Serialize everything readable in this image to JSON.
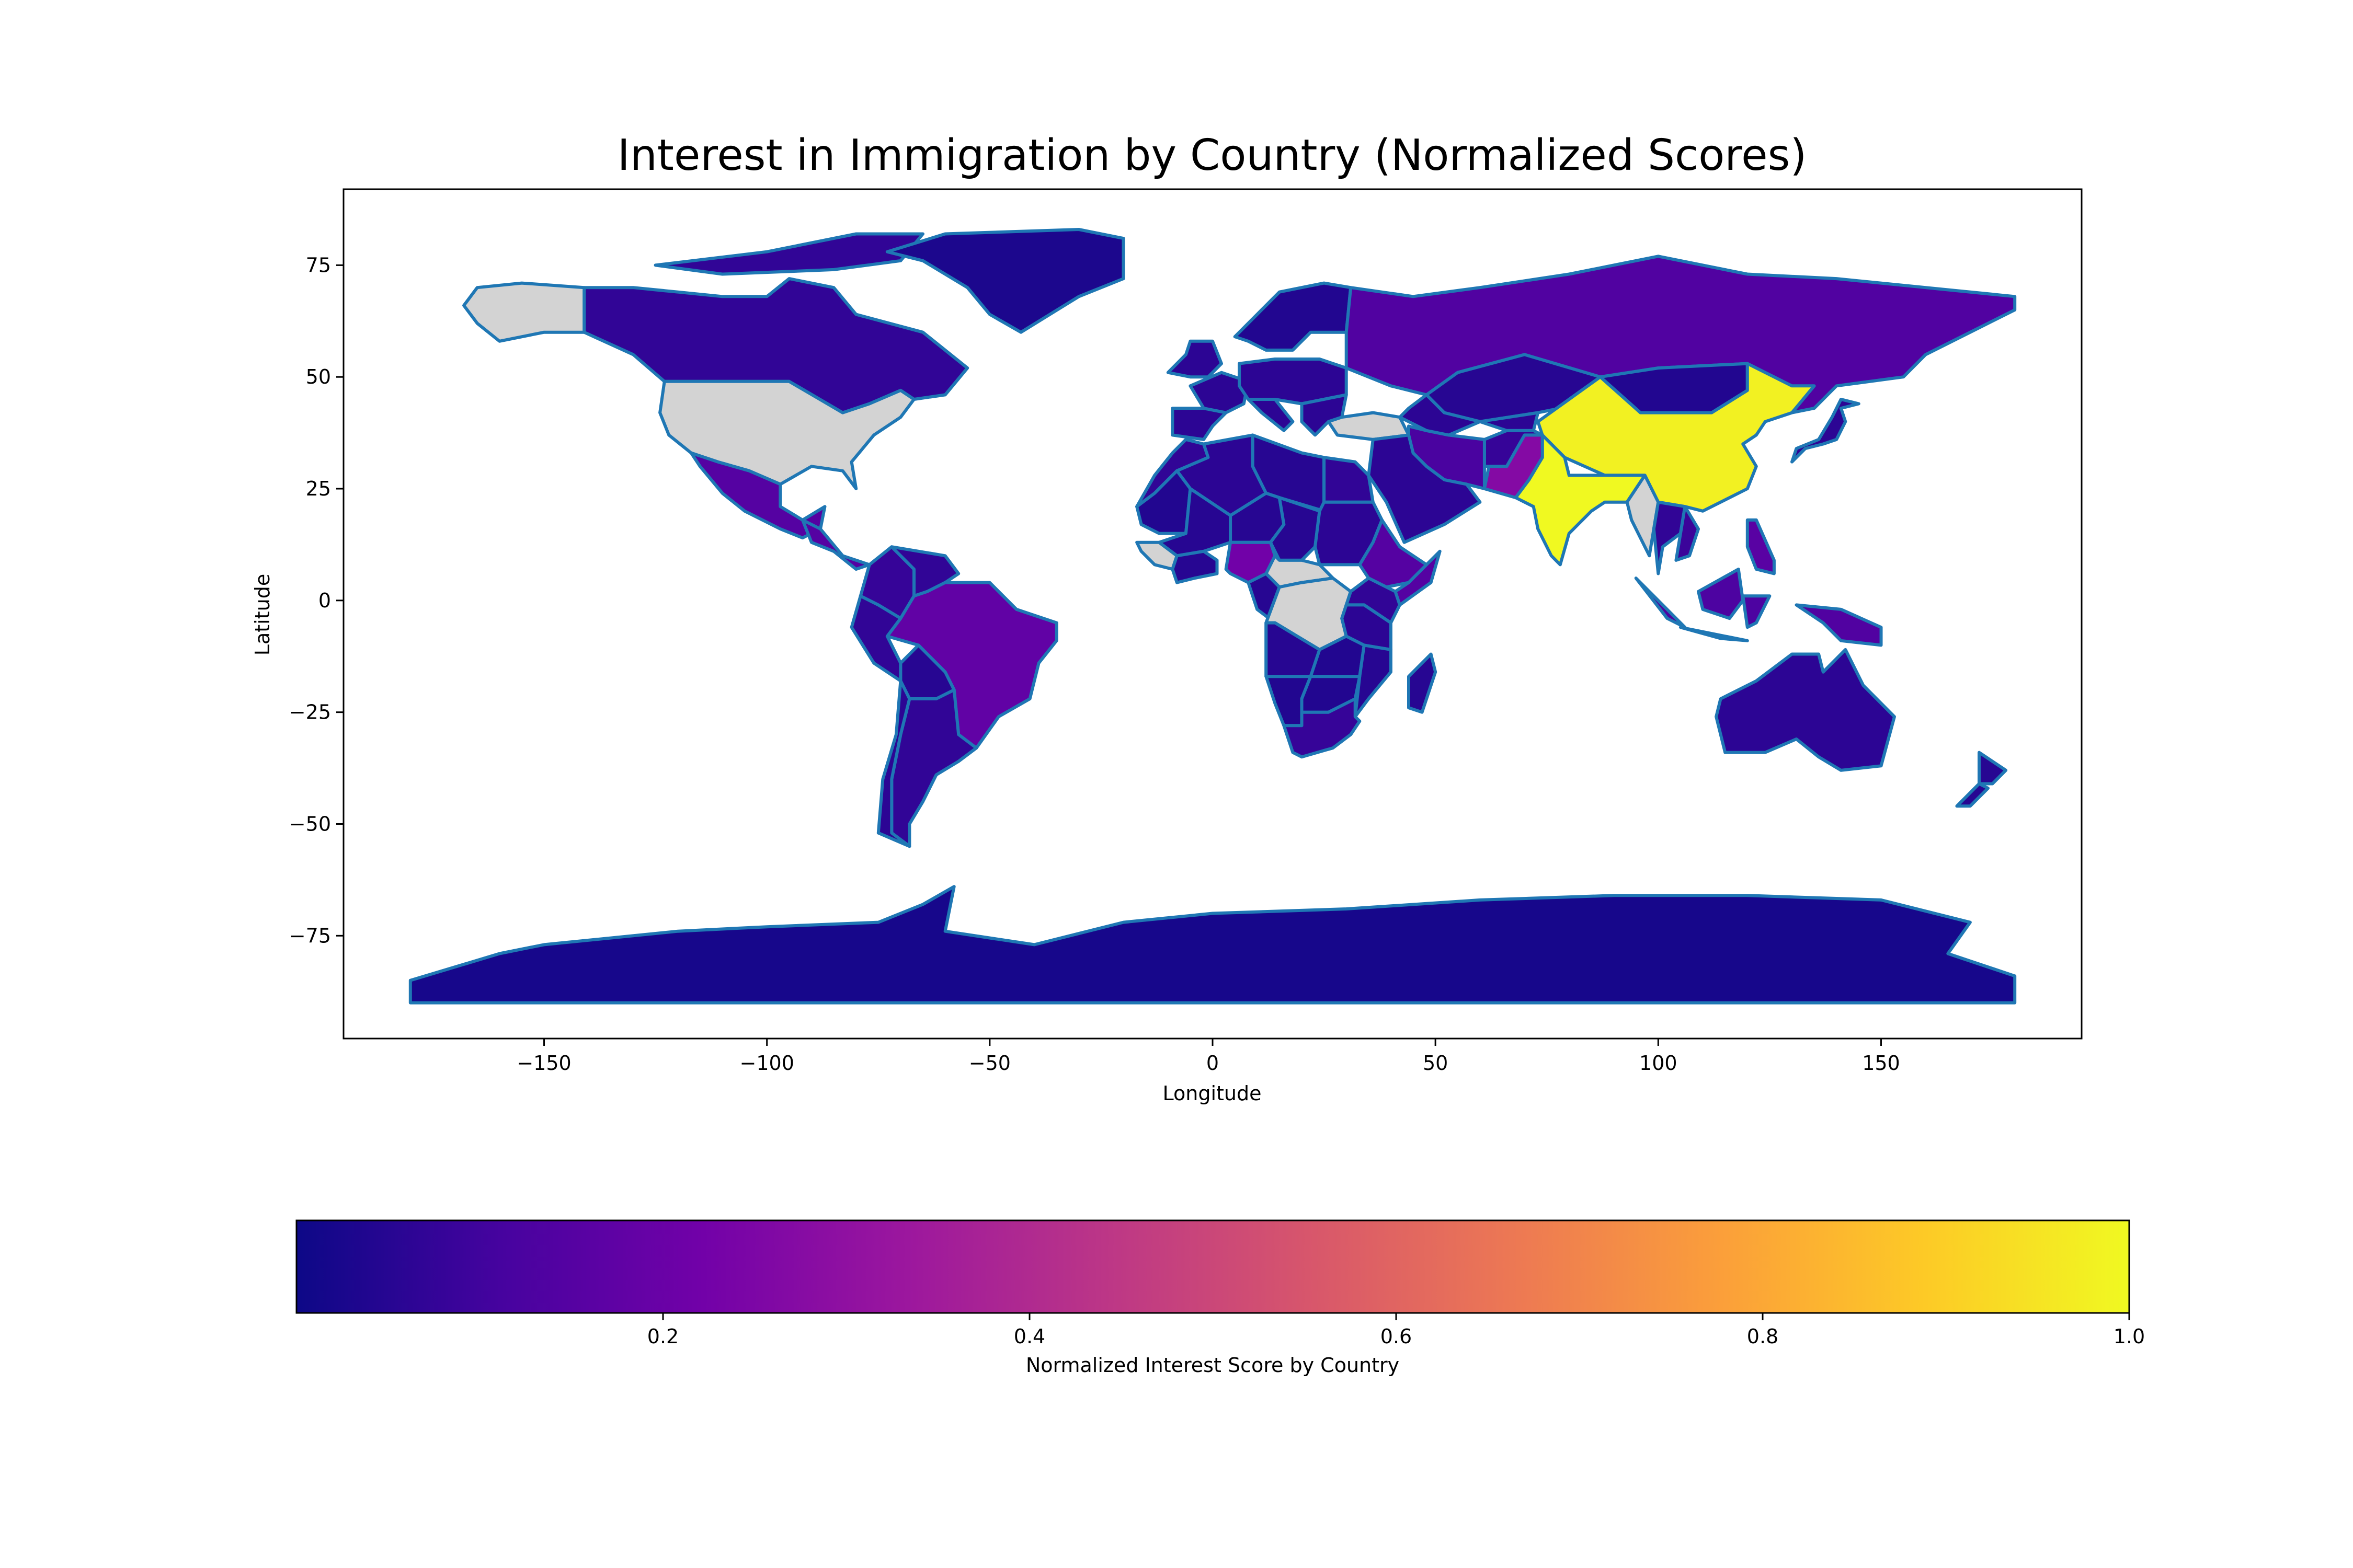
{
  "title": "Interest in Immigration by Country (Normalized Scores)",
  "map": {
    "xlabel": "Longitude",
    "ylabel": "Latitude",
    "xlim": [
      -195,
      195
    ],
    "ylim": [
      -98,
      92
    ],
    "xticks": [
      {
        "value": -150,
        "label": "−150"
      },
      {
        "value": -100,
        "label": "−100"
      },
      {
        "value": -50,
        "label": "−50"
      },
      {
        "value": 0,
        "label": "0"
      },
      {
        "value": 50,
        "label": "50"
      },
      {
        "value": 100,
        "label": "100"
      },
      {
        "value": 150,
        "label": "150"
      }
    ],
    "yticks": [
      {
        "value": 75,
        "label": "75"
      },
      {
        "value": 50,
        "label": "50"
      },
      {
        "value": 25,
        "label": "25"
      },
      {
        "value": 0,
        "label": "0"
      },
      {
        "value": -25,
        "label": "−25"
      },
      {
        "value": -50,
        "label": "−50"
      },
      {
        "value": -75,
        "label": "−75"
      }
    ],
    "colormap": "plasma",
    "missing_color": "#d3d3d3",
    "border_color": "#1f77b4"
  },
  "colorbar": {
    "label": "Normalized Interest Score by Country",
    "range": [
      0,
      1.0
    ],
    "ticks": [
      {
        "value": 0.2,
        "label": "0.2"
      },
      {
        "value": 0.4,
        "label": "0.4"
      },
      {
        "value": 0.6,
        "label": "0.6"
      },
      {
        "value": 0.8,
        "label": "0.8"
      },
      {
        "value": 1.0,
        "label": "1.0"
      }
    ],
    "stops": [
      "#0d0887",
      "#46039f",
      "#7201a8",
      "#9c179e",
      "#bd3786",
      "#d8576b",
      "#ed7953",
      "#fb9f3a",
      "#fdca26",
      "#f0f921"
    ]
  },
  "chart_data": {
    "type": "choropleth",
    "title": "Interest in Immigration by Country (Normalized Scores)",
    "xlabel": "Longitude",
    "ylabel": "Latitude",
    "colorbar_label": "Normalized Interest Score by Country",
    "value_range": [
      0,
      1.0
    ],
    "no_data_regions": [
      "United States",
      "Alaska",
      "Turkey",
      "DR Congo",
      "Central African Republic",
      "Myanmar",
      "Guinea"
    ],
    "regions": [
      {
        "name": "India",
        "value": 1.0
      },
      {
        "name": "China",
        "value": 0.98
      },
      {
        "name": "Pakistan",
        "value": 0.27
      },
      {
        "name": "Nigeria",
        "value": 0.22
      },
      {
        "name": "Brazil",
        "value": 0.18
      },
      {
        "name": "Russia",
        "value": 0.14
      },
      {
        "name": "Ethiopia",
        "value": 0.15
      },
      {
        "name": "Philippines",
        "value": 0.16
      },
      {
        "name": "Mexico",
        "value": 0.15
      },
      {
        "name": "Indonesia",
        "value": 0.13
      },
      {
        "name": "Iran",
        "value": 0.12
      },
      {
        "name": "Canada",
        "value": 0.07
      },
      {
        "name": "Australia",
        "value": 0.06
      },
      {
        "name": "Greenland",
        "value": 0.03
      },
      {
        "name": "Antarctica",
        "value": 0.02
      },
      {
        "name": "Argentina",
        "value": 0.07
      },
      {
        "name": "Mongolia",
        "value": 0.04
      },
      {
        "name": "Kazakhstan",
        "value": 0.05
      },
      {
        "name": "Saudi Arabia",
        "value": 0.06
      },
      {
        "name": "Algeria",
        "value": 0.06
      },
      {
        "name": "Egypt",
        "value": 0.07
      },
      {
        "name": "Libya",
        "value": 0.05
      },
      {
        "name": "Sudan",
        "value": 0.06
      },
      {
        "name": "Chad",
        "value": 0.05
      },
      {
        "name": "Niger",
        "value": 0.05
      },
      {
        "name": "Mali",
        "value": 0.05
      },
      {
        "name": "Mauritania",
        "value": 0.04
      },
      {
        "name": "Morocco",
        "value": 0.07
      },
      {
        "name": "Angola",
        "value": 0.05
      },
      {
        "name": "South Africa",
        "value": 0.08
      },
      {
        "name": "Namibia",
        "value": 0.04
      },
      {
        "name": "Botswana",
        "value": 0.04
      },
      {
        "name": "Tanzania",
        "value": 0.06
      },
      {
        "name": "Kenya",
        "value": 0.07
      },
      {
        "name": "Zambia",
        "value": 0.04
      },
      {
        "name": "Mozambique",
        "value": 0.05
      },
      {
        "name": "Madagascar",
        "value": 0.05
      },
      {
        "name": "Peru",
        "value": 0.07
      },
      {
        "name": "Colombia",
        "value": 0.08
      },
      {
        "name": "Venezuela",
        "value": 0.07
      },
      {
        "name": "Bolivia",
        "value": 0.05
      },
      {
        "name": "Chile",
        "value": 0.06
      },
      {
        "name": "Afghanistan",
        "value": 0.08
      },
      {
        "name": "Thailand",
        "value": 0.07
      },
      {
        "name": "Vietnam",
        "value": 0.09
      },
      {
        "name": "Japan",
        "value": 0.06
      },
      {
        "name": "Papua New Guinea",
        "value": 0.14
      },
      {
        "name": "France",
        "value": 0.06
      },
      {
        "name": "Spain",
        "value": 0.06
      },
      {
        "name": "Germany",
        "value": 0.06
      },
      {
        "name": "Scandinavia",
        "value": 0.04
      },
      {
        "name": "New Zealand",
        "value": 0.05
      }
    ]
  }
}
